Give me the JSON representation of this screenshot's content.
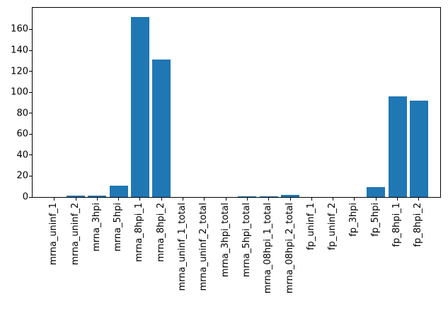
{
  "chart_data": {
    "type": "bar",
    "title": "",
    "xlabel": "",
    "ylabel": "",
    "categories": [
      "mrna_uninf_1",
      "mrna_uninf_2",
      "mrna_3hpi",
      "mrna_5hpi",
      "mrna_8hpi_1",
      "mrna_8hpi_2",
      "mrna_uninf_1_total",
      "mrna_uninf_2_total",
      "mrna_3hpi_total",
      "mrna_5hpi_total",
      "mrna_08hpi_1_total",
      "mrna_08hpi_2_total",
      "fp_uninf_1",
      "fp_uninf_2",
      "fp_3hpi",
      "fp_5hpi",
      "fp_8hpi_1",
      "fp_8hpi_2"
    ],
    "values": [
      0,
      1.5,
      1.5,
      11,
      172,
      131,
      0,
      0,
      0,
      1,
      1,
      2,
      0,
      0,
      0,
      9.5,
      96,
      92
    ],
    "yticks": [
      0,
      20,
      40,
      60,
      80,
      100,
      120,
      140,
      160
    ],
    "ylim": [
      0,
      180.6
    ],
    "grid": false,
    "legend_position": "none",
    "x_tick_rotation": 90,
    "bar_color": "#1f77b4",
    "background_color": "#ffffff",
    "spine_color": "#000000",
    "text_color": "#000000"
  }
}
